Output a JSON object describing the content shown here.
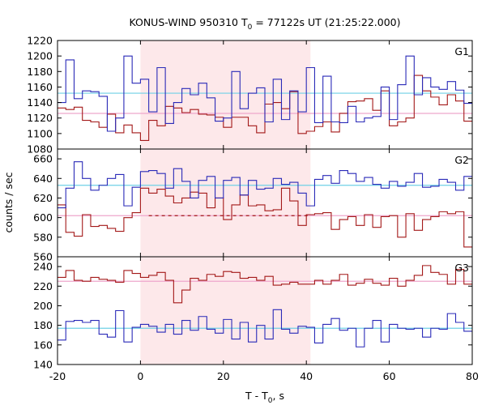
{
  "chart_data": {
    "type": "line",
    "title_main": "KONUS-WIND 950310 T",
    "title_sub": "0",
    "title_rest": " = 77122s UT (21:25:22.000)",
    "xlabel_main": "T - T",
    "xlabel_sub": "0",
    "xlabel_rest": ", s",
    "ylabel": "counts / sec",
    "xlim": [
      -20,
      80
    ],
    "xticks": [
      "-20",
      "0",
      "20",
      "40",
      "60",
      "80"
    ],
    "shaded_interval": [
      0,
      41
    ],
    "colors": {
      "blue": "#2a2ab8",
      "red": "#a31818",
      "cyan_line": "#6fd0e6",
      "pink_line": "#eea6cc",
      "shade": "#fde8ea"
    },
    "panels": [
      {
        "label": "G1",
        "ylim": [
          1080,
          1220
        ],
        "yticks": [
          "1080",
          "1100",
          "1120",
          "1140",
          "1160",
          "1180",
          "1200",
          "1220"
        ],
        "background_blue": 1152,
        "background_red": 1126,
        "blue": [
          1140,
          1195,
          1145,
          1155,
          1154,
          1148,
          1103,
          1120,
          1200,
          1165,
          1170,
          1128,
          1185,
          1113,
          1140,
          1158,
          1150,
          1165,
          1146,
          1116,
          1120,
          1180,
          1132,
          1152,
          1159,
          1115,
          1170,
          1118,
          1155,
          1128,
          1185,
          1114,
          1174,
          1115,
          1114,
          1135,
          1115,
          1120,
          1122,
          1160,
          1118,
          1163,
          1200,
          1150,
          1172,
          1160,
          1157,
          1167,
          1156,
          1139
        ],
        "red": [
          1133,
          1131,
          1134,
          1117,
          1115,
          1108,
          1125,
          1101,
          1111,
          1101,
          1091,
          1117,
          1110,
          1135,
          1133,
          1127,
          1131,
          1125,
          1124,
          1121,
          1108,
          1121,
          1121,
          1110,
          1101,
          1138,
          1140,
          1132,
          1154,
          1100,
          1103,
          1109,
          1115,
          1102,
          1126,
          1141,
          1142,
          1145,
          1130,
          1155,
          1110,
          1115,
          1120,
          1175,
          1155,
          1147,
          1137,
          1150,
          1142,
          1116
        ]
      },
      {
        "label": "G2",
        "ylim": [
          560,
          670
        ],
        "yticks": [
          "560",
          "580",
          "600",
          "620",
          "640",
          "660"
        ],
        "background_blue": 633,
        "background_red": 602,
        "background_red_dashed_interval": [
          2,
          41
        ],
        "blue": [
          610,
          630,
          657,
          640,
          628,
          633,
          640,
          644,
          612,
          631,
          647,
          648,
          645,
          630,
          650,
          637,
          620,
          638,
          642,
          620,
          638,
          641,
          623,
          638,
          629,
          630,
          640,
          634,
          636,
          625,
          612,
          639,
          643,
          635,
          648,
          645,
          637,
          641,
          634,
          630,
          637,
          632,
          636,
          645,
          631,
          632,
          639,
          636,
          628,
          642
        ],
        "red": [
          613,
          585,
          581,
          603,
          591,
          592,
          589,
          586,
          600,
          605,
          630,
          625,
          629,
          622,
          615,
          620,
          626,
          625,
          610,
          620,
          598,
          613,
          623,
          612,
          613,
          607,
          608,
          630,
          617,
          592,
          603,
          604,
          605,
          588,
          598,
          601,
          592,
          603,
          590,
          601,
          602,
          580,
          604,
          587,
          598,
          601,
          606,
          604,
          606,
          570
        ]
      },
      {
        "label": "G3",
        "ylim": [
          140,
          250
        ],
        "yticks": [
          "140",
          "160",
          "180",
          "200",
          "220",
          "240"
        ],
        "background_blue": 177,
        "background_red": 225,
        "blue": [
          165,
          184,
          185,
          183,
          185,
          171,
          168,
          195,
          163,
          178,
          181,
          179,
          173,
          181,
          171,
          185,
          175,
          189,
          176,
          172,
          186,
          166,
          183,
          163,
          180,
          166,
          196,
          176,
          172,
          179,
          178,
          162,
          181,
          187,
          175,
          177,
          158,
          177,
          185,
          163,
          181,
          177,
          176,
          177,
          168,
          177,
          176,
          192,
          183,
          174
        ],
        "red": [
          229,
          236,
          226,
          225,
          229,
          227,
          226,
          224,
          236,
          233,
          229,
          231,
          234,
          226,
          203,
          216,
          228,
          226,
          232,
          230,
          235,
          234,
          228,
          229,
          226,
          230,
          221,
          222,
          224,
          222,
          222,
          226,
          222,
          226,
          232,
          221,
          223,
          227,
          223,
          221,
          228,
          220,
          226,
          231,
          241,
          234,
          232,
          222,
          237,
          222
        ]
      }
    ]
  }
}
